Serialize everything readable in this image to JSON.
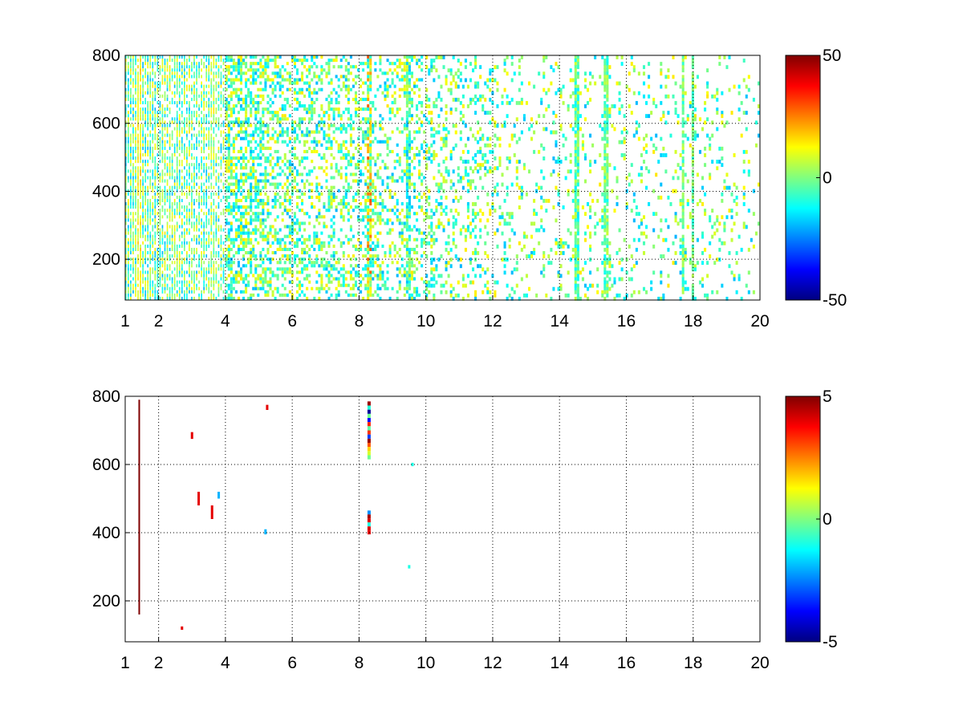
{
  "chart_data": [
    {
      "type": "heatmap",
      "title": "",
      "xlabel": "",
      "ylabel": "",
      "xlim": [
        1,
        20
      ],
      "ylim": [
        80,
        800
      ],
      "xticks": [
        1,
        2,
        4,
        6,
        8,
        10,
        12,
        14,
        16,
        18,
        20
      ],
      "yticks": [
        200,
        400,
        600,
        800
      ],
      "grid": true,
      "grid_style": "dotted",
      "colormap": "jet",
      "clim": [
        -50,
        50
      ],
      "colorbar_ticks": [
        -50,
        0,
        50
      ],
      "background_nan": "#ffffff",
      "pattern": {
        "density_by_x": [
          [
            1,
            0.85
          ],
          [
            2,
            0.75
          ],
          [
            4,
            0.6
          ],
          [
            6,
            0.4
          ],
          [
            8,
            0.32
          ],
          [
            10,
            0.28
          ],
          [
            12,
            0.15
          ],
          [
            14,
            0.12
          ],
          [
            16,
            0.12
          ],
          [
            18,
            0.1
          ],
          [
            20,
            0.1
          ]
        ],
        "typical_value_range": [
          -20,
          15
        ],
        "strong_columns": [
          {
            "x": 1.45,
            "value_range": [
              5,
              20
            ]
          },
          {
            "x": 3.65,
            "value_range": [
              -10,
              15
            ]
          },
          {
            "x": 8.3,
            "value_range": [
              -15,
              30
            ]
          },
          {
            "x": 9.5,
            "value_range": [
              -20,
              10
            ]
          },
          {
            "x": 14.5,
            "value_range": [
              -15,
              8
            ]
          },
          {
            "x": 15.4,
            "value_range": [
              -12,
              8
            ]
          },
          {
            "x": 17.7,
            "value_range": [
              -10,
              8
            ]
          },
          {
            "x": 18.0,
            "value_range": [
              -10,
              8
            ]
          }
        ]
      }
    },
    {
      "type": "heatmap",
      "title": "",
      "xlabel": "",
      "ylabel": "",
      "xlim": [
        1,
        20
      ],
      "ylim": [
        80,
        800
      ],
      "xticks": [
        1,
        2,
        4,
        6,
        8,
        10,
        12,
        14,
        16,
        18,
        20
      ],
      "yticks": [
        200,
        400,
        600,
        800
      ],
      "grid": true,
      "grid_style": "dotted",
      "colormap": "jet",
      "clim": [
        -5,
        5
      ],
      "colorbar_ticks": [
        -5,
        0,
        5
      ],
      "background_nan": "#ffffff",
      "features": [
        {
          "x": 1.42,
          "y_range": [
            160,
            790
          ],
          "value": 5
        },
        {
          "x": 8.3,
          "y_range": [
            615,
            785
          ],
          "value": "mixed"
        },
        {
          "x": 8.3,
          "y_range": [
            395,
            465
          ],
          "value": "mixed"
        },
        {
          "x": 3.0,
          "y_range": [
            675,
            695
          ],
          "value": 4
        },
        {
          "x": 5.25,
          "y_range": [
            760,
            775
          ],
          "value": 4
        },
        {
          "x": 3.6,
          "y_range": [
            440,
            480
          ],
          "value": 4
        },
        {
          "x": 3.2,
          "y_range": [
            480,
            520
          ],
          "value": 4
        },
        {
          "x": 3.8,
          "y_range": [
            500,
            520
          ],
          "value": -2
        },
        {
          "x": 9.6,
          "y_range": [
            595,
            605
          ],
          "value": -1
        },
        {
          "x": 5.2,
          "y_range": [
            395,
            410
          ],
          "value": -2
        },
        {
          "x": 2.7,
          "y_range": [
            115,
            125
          ],
          "value": 4
        },
        {
          "x": 9.5,
          "y_range": [
            295,
            305
          ],
          "value": -1
        }
      ]
    }
  ]
}
